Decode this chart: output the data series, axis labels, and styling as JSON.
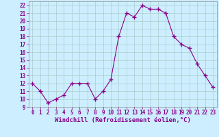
{
  "x": [
    0,
    1,
    2,
    3,
    4,
    5,
    6,
    7,
    8,
    9,
    10,
    11,
    12,
    13,
    14,
    15,
    16,
    17,
    18,
    19,
    20,
    21,
    22,
    23
  ],
  "y": [
    12,
    11,
    9.5,
    10,
    10.5,
    12,
    12,
    12,
    10,
    11,
    12.5,
    18,
    21,
    20.5,
    22,
    21.5,
    21.5,
    21,
    18,
    17,
    16.5,
    14.5,
    13,
    11.5
  ],
  "line_color": "#880088",
  "marker_color": "#880088",
  "bg_color": "#cceeff",
  "grid_color": "#aacccc",
  "xlabel": "Windchill (Refroidissement éolien,°C)",
  "ylim": [
    9,
    22.5
  ],
  "xlim": [
    -0.5,
    23.5
  ],
  "yticks": [
    9,
    10,
    11,
    12,
    13,
    14,
    15,
    16,
    17,
    18,
    19,
    20,
    21,
    22
  ],
  "xticks": [
    0,
    1,
    2,
    3,
    4,
    5,
    6,
    7,
    8,
    9,
    10,
    11,
    12,
    13,
    14,
    15,
    16,
    17,
    18,
    19,
    20,
    21,
    22,
    23
  ],
  "tick_fontsize": 5.5,
  "xlabel_fontsize": 6.5
}
